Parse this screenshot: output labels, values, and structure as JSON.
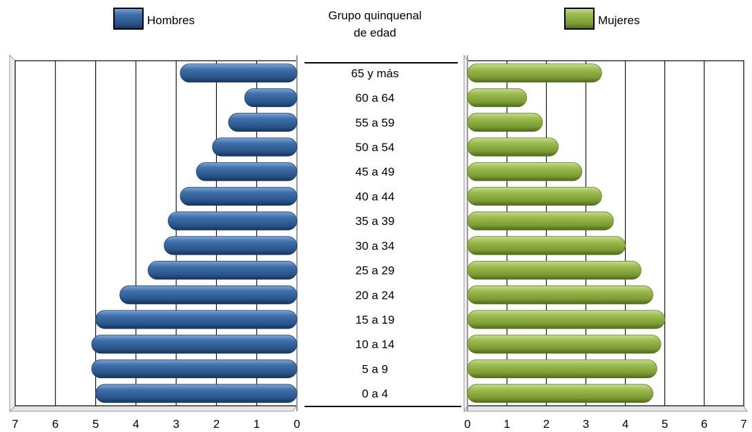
{
  "legend": {
    "male_label": "Hombres",
    "female_label": "Mujeres"
  },
  "center_title": [
    "Grupo quinquenal",
    "de edad"
  ],
  "colors": {
    "male": "#2f5d95",
    "male_light": "#6e97c9",
    "male_dark": "#1d3e68",
    "female": "#8aab3f",
    "female_light": "#b9d27b",
    "female_dark": "#5f7a25"
  },
  "chart_data": {
    "type": "bar",
    "orientation": "horizontal",
    "subtype": "population-pyramid",
    "categories": [
      "65 y más",
      "60 a 64",
      "55 a 59",
      "50 a 54",
      "45 a 49",
      "40 a 44",
      "35 a 39",
      "30 a 34",
      "25 a 29",
      "20 a 24",
      "15 a 19",
      "10 a 14",
      "5 a 9",
      "0 a 4"
    ],
    "series": [
      {
        "name": "Hombres",
        "values": [
          2.9,
          1.3,
          1.7,
          2.1,
          2.5,
          2.9,
          3.2,
          3.3,
          3.7,
          4.4,
          5.0,
          5.1,
          5.1,
          5.0
        ]
      },
      {
        "name": "Mujeres",
        "values": [
          3.4,
          1.5,
          1.9,
          2.3,
          2.9,
          3.4,
          3.7,
          4.0,
          4.4,
          4.7,
          5.0,
          4.9,
          4.8,
          4.7
        ]
      }
    ],
    "xlim": [
      0,
      7
    ],
    "x_ticks": [
      "7",
      "6",
      "5",
      "4",
      "3",
      "2",
      "1",
      "0"
    ],
    "x_ticks_right": [
      "0",
      "1",
      "2",
      "3",
      "4",
      "5",
      "6",
      "7"
    ],
    "grid": true,
    "legend_position": "top"
  }
}
